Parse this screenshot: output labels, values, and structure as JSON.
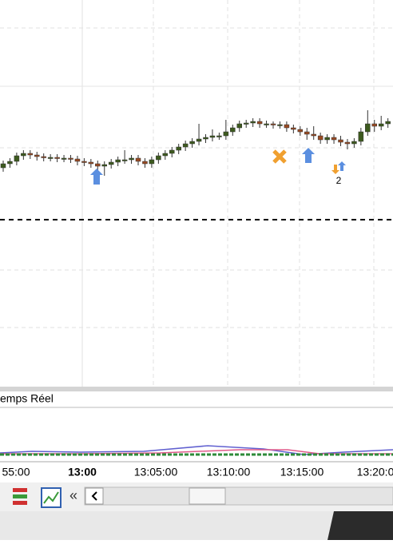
{
  "chart_data": {
    "type": "candlestick",
    "ylim": [
      100,
      200
    ],
    "open": [
      120,
      125,
      128,
      135,
      138,
      136,
      134,
      133,
      133,
      132,
      132,
      131,
      128,
      127,
      125,
      122,
      124,
      127,
      130,
      130,
      132,
      128,
      125,
      130,
      135,
      138,
      142,
      146,
      150,
      153,
      156,
      158,
      160,
      160,
      165,
      170,
      175,
      176,
      178,
      175,
      175,
      174,
      174,
      170,
      168,
      165,
      162,
      160,
      155,
      158,
      155,
      152,
      150,
      153,
      165,
      175,
      172,
      175
    ],
    "high": [
      129,
      132,
      139,
      142,
      142,
      140,
      138,
      137,
      137,
      136,
      136,
      135,
      132,
      131,
      129,
      128,
      131,
      134,
      142,
      136,
      136,
      132,
      134,
      139,
      142,
      146,
      150,
      154,
      157,
      175,
      162,
      168,
      164,
      180,
      174,
      179,
      180,
      182,
      182,
      179,
      178,
      178,
      178,
      174,
      172,
      170,
      172,
      164,
      162,
      162,
      160,
      156,
      157,
      170,
      192,
      180,
      185,
      182
    ],
    "low": [
      115,
      120,
      123,
      130,
      131,
      129,
      128,
      128,
      127,
      127,
      126,
      123,
      122,
      120,
      117,
      110,
      119,
      122,
      125,
      125,
      123,
      120,
      120,
      125,
      130,
      133,
      137,
      141,
      145,
      148,
      151,
      153,
      155,
      155,
      160,
      165,
      170,
      171,
      170,
      170,
      169,
      169,
      165,
      163,
      160,
      155,
      155,
      150,
      150,
      150,
      147,
      143,
      145,
      148,
      160,
      165,
      167,
      170
    ],
    "close": [
      125,
      128,
      135,
      138,
      136,
      134,
      133,
      133,
      132,
      132,
      131,
      128,
      127,
      125,
      122,
      124,
      127,
      130,
      130,
      132,
      128,
      125,
      130,
      135,
      138,
      142,
      146,
      150,
      153,
      156,
      158,
      160,
      160,
      165,
      170,
      175,
      176,
      178,
      175,
      175,
      174,
      174,
      170,
      168,
      165,
      162,
      160,
      155,
      158,
      155,
      152,
      150,
      153,
      165,
      175,
      172,
      175,
      178
    ],
    "up_color": "#3d5a1e",
    "down_color": "#9b4a22",
    "panel_label": "emps Réel",
    "time_labels": [
      "55:00",
      "13:00",
      "13:05:00",
      "13:10:00",
      "13:15:00",
      "13:20:0"
    ],
    "signal_count": "2"
  }
}
